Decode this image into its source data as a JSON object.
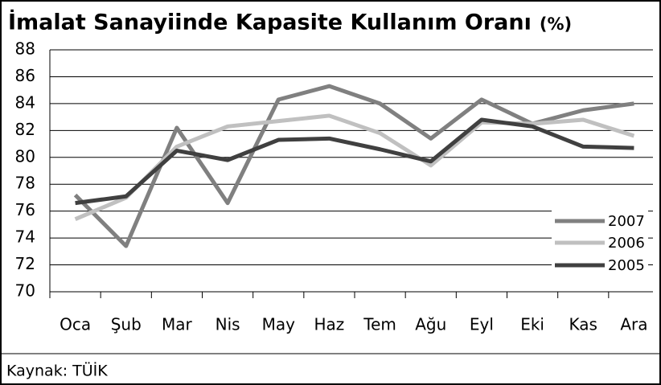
{
  "chart_data": {
    "type": "line",
    "title": "İmalat Sanayiinde Kapasite Kullanım Oranı",
    "subtitle": "(%)",
    "source": "Kaynak: TÜİK",
    "categories": [
      "Oca",
      "Şub",
      "Mar",
      "Nis",
      "May",
      "Haz",
      "Tem",
      "Ağu",
      "Eyl",
      "Eki",
      "Kas",
      "Ara"
    ],
    "series": [
      {
        "name": "2007",
        "color": "#808080",
        "values": [
          77.2,
          73.4,
          82.2,
          76.6,
          84.3,
          85.3,
          84.0,
          81.4,
          84.3,
          82.5,
          83.5,
          84.0
        ]
      },
      {
        "name": "2006",
        "color": "#c0c0c0",
        "values": [
          75.4,
          77.0,
          80.8,
          82.3,
          82.7,
          83.1,
          81.8,
          79.4,
          82.6,
          82.5,
          82.8,
          81.6
        ]
      },
      {
        "name": "2005",
        "color": "#404040",
        "values": [
          76.6,
          77.1,
          80.5,
          79.8,
          81.3,
          81.4,
          80.6,
          79.7,
          82.8,
          82.3,
          80.8,
          80.7
        ]
      }
    ],
    "ylim": [
      70,
      88
    ],
    "yticks": [
      70,
      72,
      74,
      76,
      78,
      80,
      82,
      84,
      86,
      88
    ],
    "grid": true,
    "legend": "lower right"
  }
}
